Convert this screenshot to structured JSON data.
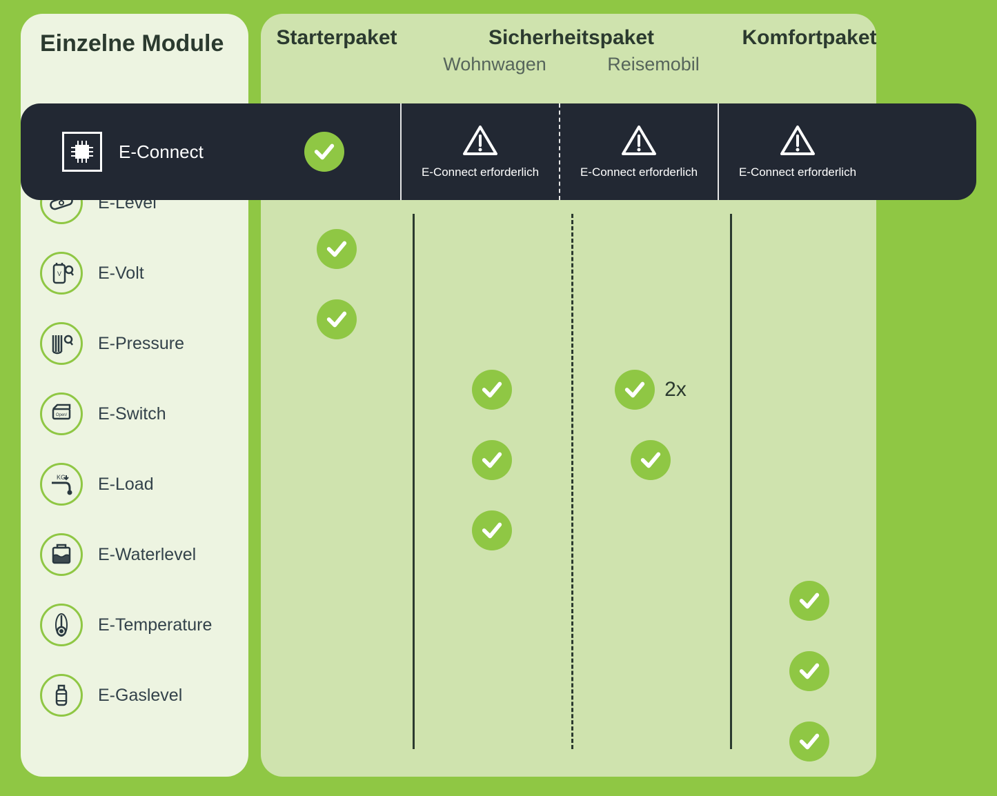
{
  "colors": {
    "page_bg": "#8fc744",
    "left_panel_bg": "#edf4e1",
    "right_panel_bg": "#cfe3ae",
    "dark_bar_bg": "#222833",
    "check_bg": "#8fc744",
    "text_dark": "#2b3a2f",
    "text_muted": "#56655b",
    "icon_ring": "#8fc744"
  },
  "left": {
    "title": "Einzelne Module",
    "modules": [
      {
        "id": "e-level",
        "label": "E-Level"
      },
      {
        "id": "e-volt",
        "label": "E-Volt"
      },
      {
        "id": "e-pressure",
        "label": "E-Pressure"
      },
      {
        "id": "e-switch",
        "label": "E-Switch"
      },
      {
        "id": "e-load",
        "label": "E-Load"
      },
      {
        "id": "e-waterlevel",
        "label": "E-Waterlevel"
      },
      {
        "id": "e-temperature",
        "label": "E-Temperature"
      },
      {
        "id": "e-gaslevel",
        "label": "E-Gaslevel"
      }
    ]
  },
  "columns": {
    "starter": {
      "title": "Starterpaket"
    },
    "sicherheit": {
      "title": "Sicherheitspaket"
    },
    "sicher_wohnwagen": {
      "sub": "Wohnwagen"
    },
    "sicher_reisemobil": {
      "sub": "Reisemobil"
    },
    "komfort": {
      "title": "Komfortpaket"
    }
  },
  "dark_row": {
    "label": "E-Connect",
    "required_text": "E-Connect erforderlich",
    "cells": {
      "starter": {
        "type": "check"
      },
      "wohnwagen": {
        "type": "warn"
      },
      "reisemobil": {
        "type": "warn"
      },
      "komfort": {
        "type": "warn"
      }
    }
  },
  "matrix": {
    "starter": {
      "e-level": {
        "type": "check"
      },
      "e-volt": {
        "type": "check"
      }
    },
    "wohnwagen": {
      "e-pressure": {
        "type": "check"
      },
      "e-switch": {
        "type": "check"
      },
      "e-load": {
        "type": "check"
      }
    },
    "reisemobil": {
      "e-pressure": {
        "type": "check",
        "qty": "2x"
      },
      "e-switch": {
        "type": "check"
      }
    },
    "komfort": {
      "e-waterlevel": {
        "type": "check"
      },
      "e-temperature": {
        "type": "check"
      },
      "e-gaslevel": {
        "type": "check"
      }
    }
  }
}
